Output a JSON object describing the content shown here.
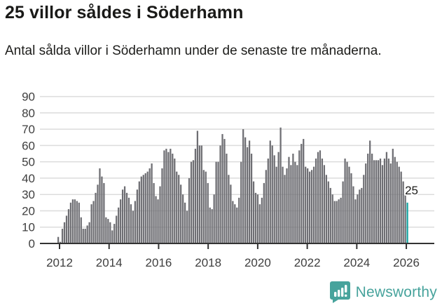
{
  "header": {
    "title": "25 villor såldes i Söderhamn",
    "subtitle": "Antal sålda villor i Söderhamn under de senaste tre månaderna."
  },
  "chart_data": {
    "type": "bar",
    "title": "25 villor såldes i Söderhamn",
    "xlabel": "",
    "ylabel": "",
    "ylim": [
      0,
      90
    ],
    "y_ticks": [
      0,
      10,
      20,
      30,
      40,
      50,
      60,
      70,
      80,
      90
    ],
    "x_tick_years": [
      2012,
      2014,
      2016,
      2018,
      2020,
      2022,
      2024,
      2026
    ],
    "x_start_month": "2012-01",
    "x_end_month": "2026-01",
    "grid": "horizontal",
    "legend": "none",
    "annotation": {
      "text": "25"
    },
    "highlighted_last_value": 25,
    "values": [
      4,
      1,
      9,
      13,
      17,
      21,
      25,
      27,
      27,
      26,
      25,
      16,
      9,
      9,
      11,
      13,
      24,
      26,
      31,
      36,
      46,
      41,
      37,
      16,
      15,
      13,
      8,
      12,
      17,
      22,
      27,
      33,
      35,
      31,
      28,
      24,
      20,
      26,
      33,
      38,
      41,
      42,
      43,
      44,
      46,
      49,
      37,
      29,
      27,
      35,
      46,
      57,
      58,
      56,
      58,
      55,
      52,
      44,
      42,
      36,
      30,
      25,
      20,
      40,
      50,
      51,
      58,
      69,
      60,
      60,
      45,
      44,
      37,
      22,
      21,
      30,
      50,
      50,
      60,
      67,
      64,
      55,
      42,
      36,
      26,
      24,
      22,
      28,
      50,
      70,
      65,
      59,
      63,
      55,
      38,
      31,
      30,
      24,
      28,
      37,
      45,
      52,
      63,
      60,
      54,
      47,
      56,
      71,
      47,
      42,
      46,
      53,
      48,
      55,
      50,
      48,
      57,
      61,
      64,
      47,
      46,
      44,
      45,
      47,
      52,
      56,
      57,
      52,
      48,
      42,
      38,
      34,
      30,
      26,
      26,
      27,
      28,
      38,
      52,
      50,
      47,
      43,
      35,
      27,
      30,
      33,
      34,
      42,
      49,
      55,
      63,
      55,
      51,
      51,
      51,
      52,
      48,
      52,
      56,
      52,
      49,
      58,
      53,
      50,
      47,
      44,
      38,
      31,
      25
    ],
    "colors": {
      "bar": "#6e6e73",
      "highlight": "#13a3a1",
      "grid": "#dcdcdc",
      "axis": "#333333",
      "tick_label": "#3f3f3f",
      "annotation_text": "#1d1d1b"
    }
  },
  "footer": {
    "brand": "Newsworthy",
    "brand_color": "#47a39c"
  }
}
